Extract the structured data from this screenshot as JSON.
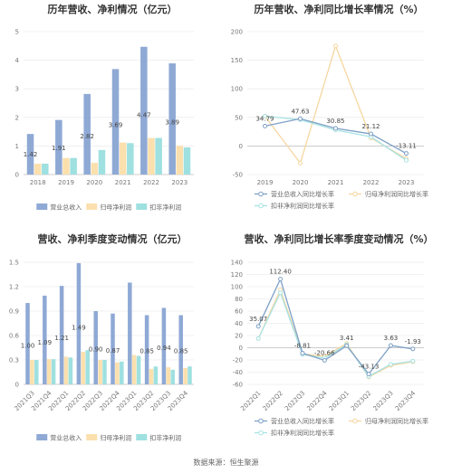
{
  "colors": {
    "revenue": "#8FA9D5",
    "net_profit": "#FBE0AE",
    "deducted_profit": "#9FE0E0",
    "revenue_line": "#7FA0C6",
    "profit_line": "#F5D7A0",
    "deducted_line": "#A8E3E3"
  },
  "source": "数据来源：恒生聚源",
  "chart_data": [
    {
      "type": "bar",
      "title": "历年营收、净利情况（亿元）",
      "categories": [
        "2018",
        "2019",
        "2020",
        "2021",
        "2022",
        "2023"
      ],
      "ylim": [
        0,
        5
      ],
      "yticks": [
        "0",
        "1",
        "2",
        "3",
        "4",
        "5"
      ],
      "series": [
        {
          "name": "营业总收入",
          "values": [
            1.42,
            1.91,
            2.82,
            3.69,
            4.47,
            3.89
          ],
          "labels": [
            "1.42",
            "1.91",
            "2.82",
            "3.69",
            "4.47",
            "3.89"
          ]
        },
        {
          "name": "归母净利润",
          "values": [
            0.38,
            0.58,
            0.41,
            1.12,
            1.28,
            1.0
          ]
        },
        {
          "name": "扣非净利润",
          "values": [
            0.38,
            0.58,
            0.86,
            1.1,
            1.28,
            0.95
          ]
        }
      ],
      "legend": "bottom"
    },
    {
      "type": "line",
      "title": "历年营收、净利同比增长率情况（%）",
      "categories": [
        "2019",
        "2020",
        "2021",
        "2022",
        "2023"
      ],
      "ylim": [
        -50,
        200
      ],
      "yticks": [
        "-50",
        "0",
        "50",
        "100",
        "150",
        "200"
      ],
      "series": [
        {
          "name": "营业总收入同比增长率",
          "values": [
            34.79,
            47.63,
            30.85,
            21.12,
            -13.11
          ],
          "labels": [
            "34.79",
            "47.63",
            "30.85",
            "21.12",
            "-13.11"
          ]
        },
        {
          "name": "归母净利润同比增长率",
          "values": [
            52,
            -30,
            175,
            14,
            -22
          ]
        },
        {
          "name": "扣非净利润同比增长率",
          "values": [
            52,
            46,
            28,
            16,
            -25
          ]
        }
      ],
      "legend": "bottom"
    },
    {
      "type": "bar",
      "title": "营收、净利季度变动情况（亿元）",
      "categories": [
        "2021Q3",
        "2021Q4",
        "2022Q1",
        "2022Q2",
        "2022Q3",
        "2022Q4",
        "2023Q1",
        "2023Q2",
        "2023Q3",
        "2023Q4"
      ],
      "ylim": [
        0,
        1.5
      ],
      "yticks": [
        "0",
        "0.3",
        "0.6",
        "0.9",
        "1.2",
        "1.5"
      ],
      "series": [
        {
          "name": "营业总收入",
          "values": [
            1.0,
            1.09,
            1.21,
            1.49,
            0.9,
            0.87,
            1.25,
            0.85,
            0.94,
            0.85
          ],
          "labels": [
            "1.00",
            "1.09",
            "1.21",
            "1.49",
            "0.90",
            "0.87",
            "",
            "0.85",
            "0.94",
            "0.85"
          ]
        },
        {
          "name": "归母净利润",
          "values": [
            0.3,
            0.31,
            0.34,
            0.4,
            0.3,
            0.27,
            0.36,
            0.19,
            0.21,
            0.2
          ]
        },
        {
          "name": "扣非净利润",
          "values": [
            0.3,
            0.31,
            0.33,
            0.42,
            0.3,
            0.28,
            0.35,
            0.22,
            0.18,
            0.22
          ]
        }
      ],
      "legend": "bottom"
    },
    {
      "type": "line",
      "title": "营收、净利同比增长率季度变动情况（%）",
      "categories": [
        "2022Q1",
        "2022Q2",
        "2022Q3",
        "2022Q4",
        "2023Q1",
        "2023Q2",
        "2023Q3",
        "2023Q4"
      ],
      "ylim": [
        -60,
        140
      ],
      "yticks": [
        "-60",
        "-40",
        "-20",
        "0",
        "20",
        "40",
        "60",
        "80",
        "100",
        "120",
        "140"
      ],
      "series": [
        {
          "name": "营业总收入同比增长率",
          "values": [
            35.07,
            112.4,
            -8.81,
            -20.66,
            3.41,
            -43.13,
            3.63,
            -1.93
          ],
          "labels": [
            "35.07",
            "112.40",
            "-8.81",
            "-20.66",
            "3.41",
            "-43.13",
            "3.63",
            "-1.93"
          ]
        },
        {
          "name": "归母净利润同比增长率",
          "values": [
            15,
            95,
            -10,
            -14,
            7,
            -48,
            -29,
            -23
          ]
        },
        {
          "name": "扣非净利润同比增长率",
          "values": [
            15,
            90,
            -11,
            -17,
            5,
            -47,
            -27,
            -22
          ]
        }
      ],
      "legend": "bottom"
    }
  ]
}
